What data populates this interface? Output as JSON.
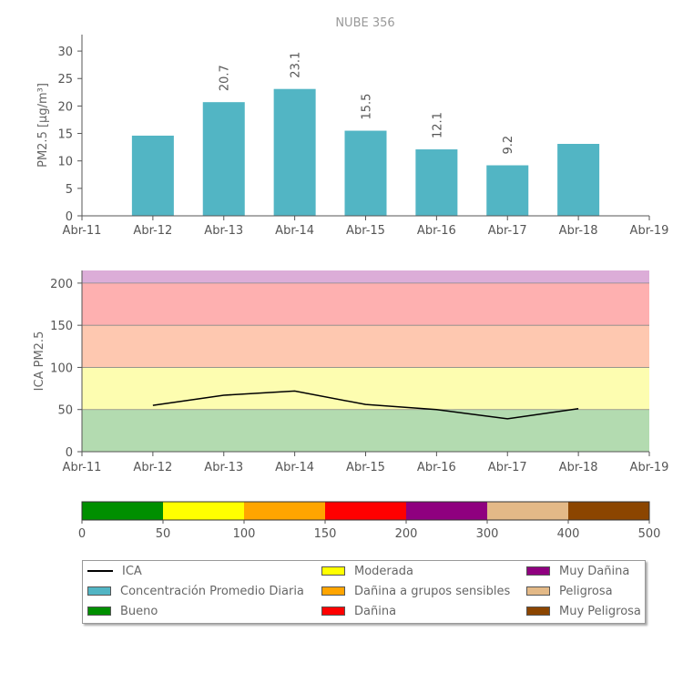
{
  "chart_data": [
    {
      "type": "bar",
      "title": "NUBE 356",
      "ylabel": "PM2.5 [μg/m³]",
      "ylim": [
        0,
        33
      ],
      "yticks": [
        0,
        5,
        10,
        15,
        20,
        25,
        30
      ],
      "xticks": [
        "Abr-11",
        "Abr-12",
        "Abr-13",
        "Abr-14",
        "Abr-15",
        "Abr-16",
        "Abr-17",
        "Abr-18",
        "Abr-19"
      ],
      "categories": [
        "Abr-12",
        "Abr-13",
        "Abr-14",
        "Abr-15",
        "Abr-16",
        "Abr-17",
        "Abr-18"
      ],
      "values": [
        14.6,
        20.7,
        23.1,
        15.5,
        12.1,
        9.2,
        13.1
      ],
      "data_labels": [
        "",
        "20.7",
        "23.1",
        "15.5",
        "12.1",
        "9.2",
        ""
      ],
      "bar_color": "#52b5c4"
    },
    {
      "type": "line",
      "ylabel": "ICA PM2.5",
      "ylim": [
        0,
        215
      ],
      "yticks": [
        0,
        50,
        100,
        150,
        200
      ],
      "xticks": [
        "Abr-11",
        "Abr-12",
        "Abr-13",
        "Abr-14",
        "Abr-15",
        "Abr-16",
        "Abr-17",
        "Abr-18",
        "Abr-19"
      ],
      "x": [
        "Abr-12",
        "Abr-13",
        "Abr-14",
        "Abr-15",
        "Abr-16",
        "Abr-17",
        "Abr-18"
      ],
      "y": [
        55,
        67,
        72,
        56,
        50,
        39,
        51
      ],
      "bands": [
        {
          "from": 0,
          "to": 50,
          "color": "#b3dbb0"
        },
        {
          "from": 50,
          "to": 100,
          "color": "#fdfdb0"
        },
        {
          "from": 100,
          "to": 150,
          "color": "#fec8b0"
        },
        {
          "from": 150,
          "to": 200,
          "color": "#feb0b0"
        },
        {
          "from": 200,
          "to": 215,
          "color": "#dcadd8"
        }
      ],
      "line_color": "#000000"
    },
    {
      "type": "colorbar",
      "ticks": [
        "0",
        "50",
        "100",
        "150",
        "200",
        "300",
        "400",
        "500"
      ],
      "segments": [
        {
          "color": "#008f00"
        },
        {
          "color": "#ffff00"
        },
        {
          "color": "#ffa500"
        },
        {
          "color": "#ff0000"
        },
        {
          "color": "#8f007f"
        },
        {
          "color": "#e3b987"
        },
        {
          "color": "#8b4500"
        }
      ]
    }
  ],
  "legend": [
    {
      "label": "ICA",
      "kind": "line",
      "color": "#000000"
    },
    {
      "label": "Concentración Promedio Diaria",
      "kind": "box",
      "color": "#52b5c4"
    },
    {
      "label": "Bueno",
      "kind": "box",
      "color": "#008f00"
    },
    {
      "label": "Moderada",
      "kind": "box",
      "color": "#ffff00"
    },
    {
      "label": "Dañina a grupos sensibles",
      "kind": "box",
      "color": "#ffa500"
    },
    {
      "label": "Dañina",
      "kind": "box",
      "color": "#ff0000"
    },
    {
      "label": "Muy Dañina",
      "kind": "box",
      "color": "#8f007f"
    },
    {
      "label": "Peligrosa",
      "kind": "box",
      "color": "#e3b987"
    },
    {
      "label": "Muy Peligrosa",
      "kind": "box",
      "color": "#8b4500"
    }
  ]
}
